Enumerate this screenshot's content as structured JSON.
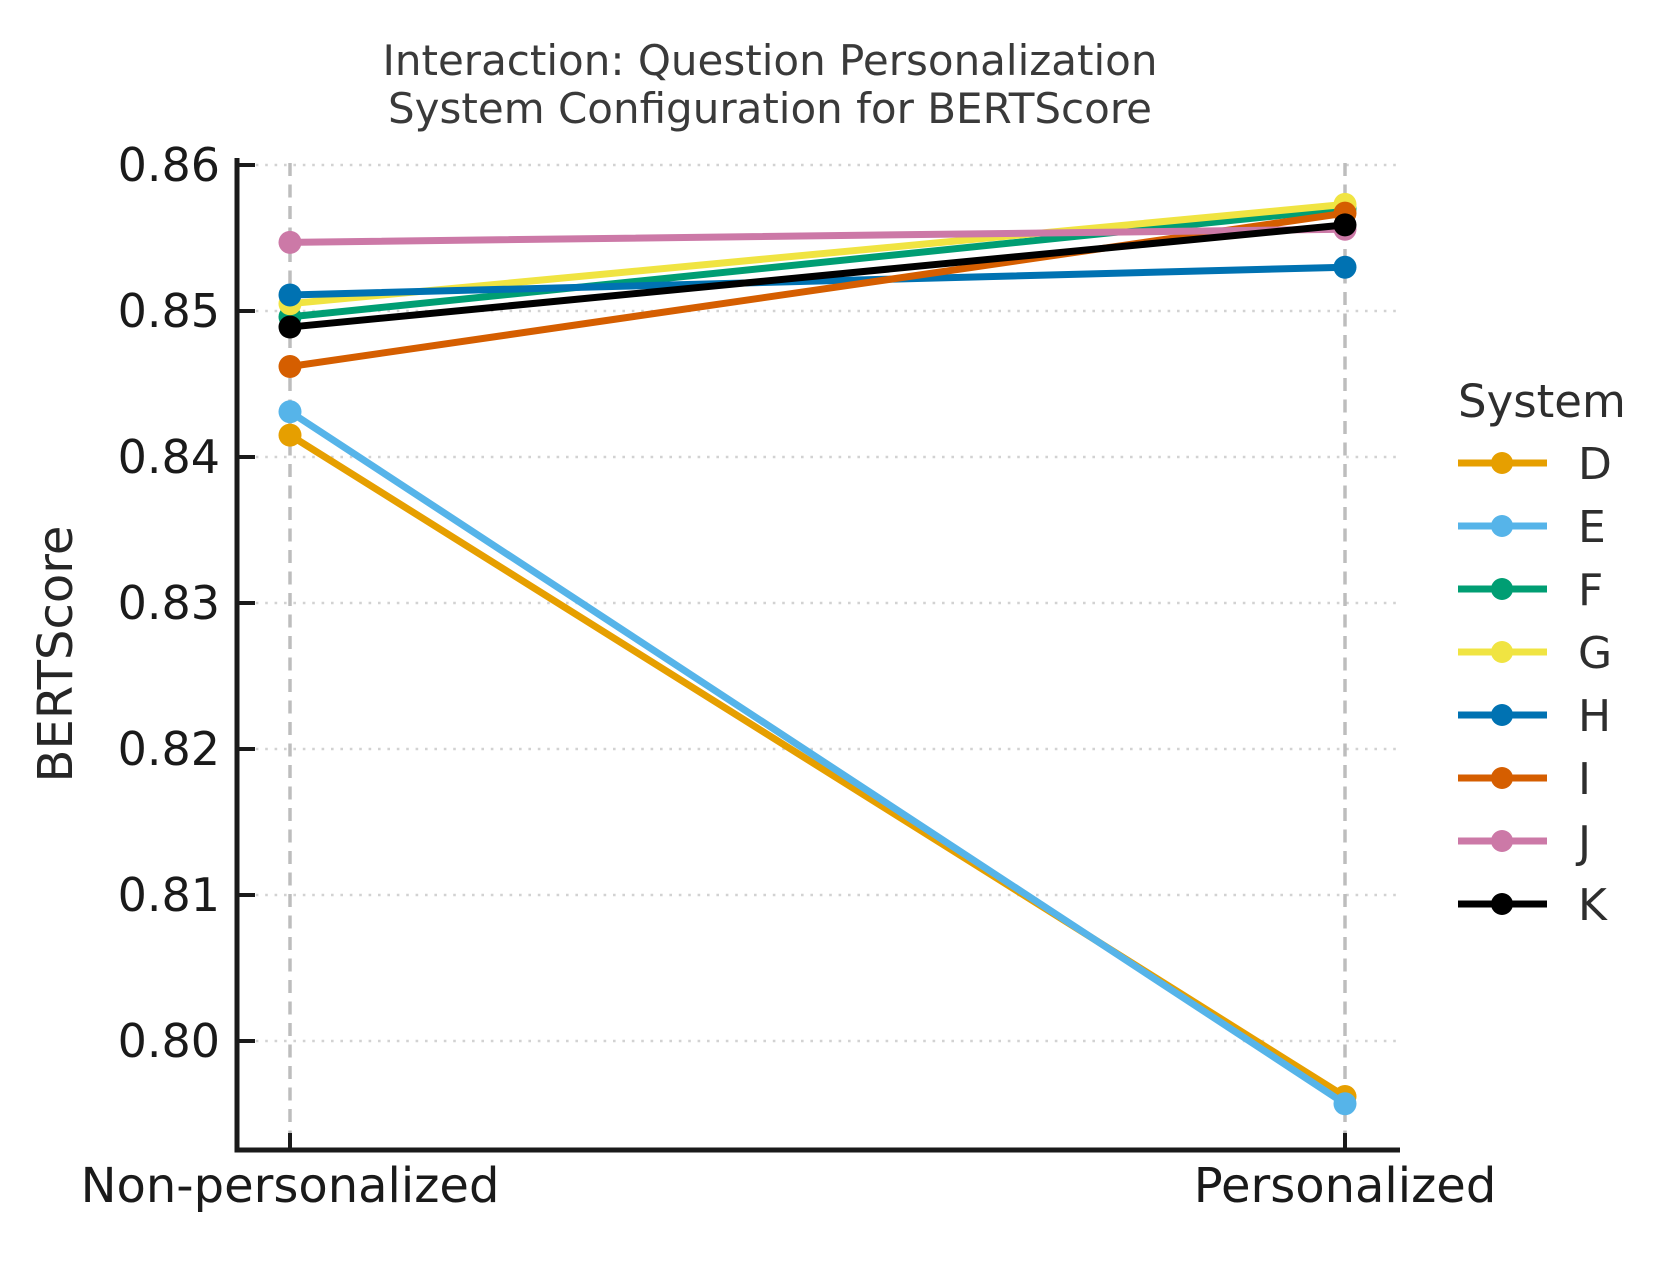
{
  "chart_data": {
    "type": "line",
    "title_lines": [
      "Interaction: Question Personalization",
      "System Configuration for BERTScore"
    ],
    "title": "Interaction: Question Personalization\nSystem Configuration for BERTScore",
    "xlabel": "",
    "ylabel": "BERTScore",
    "categories": [
      "Non-personalized",
      "Personalized"
    ],
    "yticks": [
      0.86,
      0.85,
      0.84,
      0.83,
      0.82,
      0.81,
      0.8
    ],
    "ylim": [
      0.7925,
      0.861
    ],
    "grid": {
      "horizontal": "dotted",
      "vertical": "dashed"
    },
    "legend": {
      "title": "System",
      "position": "right-outside"
    },
    "series": [
      {
        "name": "D",
        "color": "#E69F00",
        "values": [
          0.8415,
          0.7962
        ]
      },
      {
        "name": "E",
        "color": "#56B4E9",
        "values": [
          0.8431,
          0.7957
        ]
      },
      {
        "name": "F",
        "color": "#009E73",
        "values": [
          0.8496,
          0.857
        ]
      },
      {
        "name": "G",
        "color": "#F0E442",
        "values": [
          0.8505,
          0.8573
        ]
      },
      {
        "name": "H",
        "color": "#0072B2",
        "values": [
          0.8511,
          0.853
        ]
      },
      {
        "name": "I",
        "color": "#D55E00",
        "values": [
          0.8462,
          0.8567
        ]
      },
      {
        "name": "J",
        "color": "#CC79A7",
        "values": [
          0.8547,
          0.8556
        ]
      },
      {
        "name": "K",
        "color": "#000000",
        "values": [
          0.8489,
          0.8559
        ]
      }
    ]
  }
}
